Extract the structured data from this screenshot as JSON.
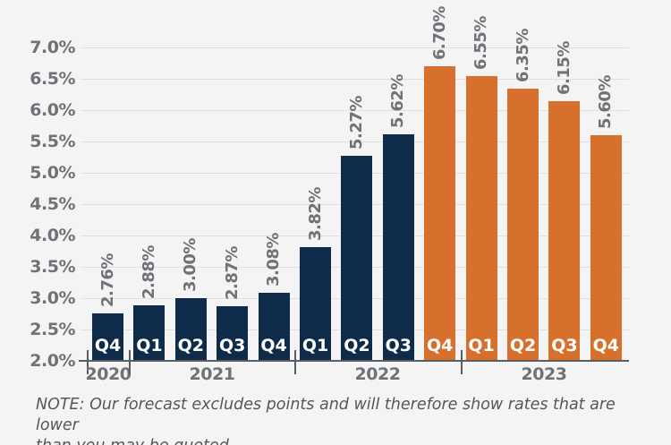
{
  "chart_data": {
    "type": "bar",
    "title": "",
    "xlabel": "",
    "ylabel": "",
    "unit": "%",
    "ylim": [
      2.0,
      7.0
    ],
    "ytick_step": 0.5,
    "ytick_labels": [
      "7.0%",
      "6.5%",
      "6.0%",
      "5.5%",
      "5.0%",
      "4.5%",
      "4.0%",
      "3.5%",
      "3.0%",
      "2.5%",
      "2.0%"
    ],
    "grid": true,
    "legend": "none",
    "categories": [
      "Q4 2020",
      "Q1 2021",
      "Q2 2021",
      "Q3 2021",
      "Q4 2021",
      "Q1 2022",
      "Q2 2022",
      "Q3 2022",
      "Q4 2022",
      "Q1 2023",
      "Q2 2023",
      "Q3 2023",
      "Q4 2023"
    ],
    "bars": [
      {
        "quarter": "Q4",
        "year": "2020",
        "value": 2.76,
        "label": "2.76%",
        "series": "actual"
      },
      {
        "quarter": "Q1",
        "year": "2021",
        "value": 2.88,
        "label": "2.88%",
        "series": "actual"
      },
      {
        "quarter": "Q2",
        "year": "2021",
        "value": 3.0,
        "label": "3.00%",
        "series": "actual"
      },
      {
        "quarter": "Q3",
        "year": "2021",
        "value": 2.87,
        "label": "2.87%",
        "series": "actual"
      },
      {
        "quarter": "Q4",
        "year": "2021",
        "value": 3.08,
        "label": "3.08%",
        "series": "actual"
      },
      {
        "quarter": "Q1",
        "year": "2022",
        "value": 3.82,
        "label": "3.82%",
        "series": "actual"
      },
      {
        "quarter": "Q2",
        "year": "2022",
        "value": 5.27,
        "label": "5.27%",
        "series": "actual"
      },
      {
        "quarter": "Q3",
        "year": "2022",
        "value": 5.62,
        "label": "5.62%",
        "series": "actual"
      },
      {
        "quarter": "Q4",
        "year": "2022",
        "value": 6.7,
        "label": "6.70%",
        "series": "forecast"
      },
      {
        "quarter": "Q1",
        "year": "2023",
        "value": 6.55,
        "label": "6.55%",
        "series": "forecast"
      },
      {
        "quarter": "Q2",
        "year": "2023",
        "value": 6.35,
        "label": "6.35%",
        "series": "forecast"
      },
      {
        "quarter": "Q3",
        "year": "2023",
        "value": 6.15,
        "label": "6.15%",
        "series": "forecast"
      },
      {
        "quarter": "Q4",
        "year": "2023",
        "value": 5.6,
        "label": "5.60%",
        "series": "forecast"
      }
    ],
    "year_groups": [
      {
        "label": "2020",
        "count": 1
      },
      {
        "label": "2021",
        "count": 4
      },
      {
        "label": "2022",
        "count": 4
      },
      {
        "label": "2023",
        "count": 4
      }
    ],
    "colors": {
      "actual": "#0E2B4A",
      "forecast": "#D7702D",
      "grid": "#E0E0E2",
      "axis": "#5A5E63",
      "tick_text": "#6F7277",
      "bar_text": "#FFFFFF",
      "background": "#F4F4F5"
    }
  },
  "note": {
    "line1": "NOTE: Our forecast excludes points and will therefore show rates that are lower",
    "line2": "than you may be quoted."
  }
}
